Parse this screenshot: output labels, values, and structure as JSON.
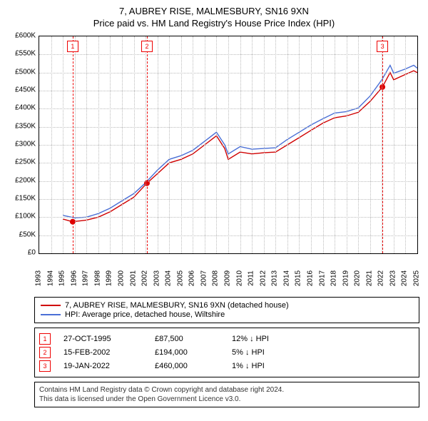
{
  "title_line1": "7, AUBREY RISE, MALMESBURY, SN16 9XN",
  "title_line2": "Price paid vs. HM Land Registry's House Price Index (HPI)",
  "chart": {
    "type": "line",
    "background_color": "#ffffff",
    "grid_color": "#bbbbbb",
    "border_color": "#000000",
    "x_years": [
      1993,
      1994,
      1995,
      1996,
      1997,
      1998,
      1999,
      2000,
      2001,
      2002,
      2003,
      2004,
      2005,
      2006,
      2007,
      2008,
      2009,
      2010,
      2011,
      2012,
      2013,
      2014,
      2015,
      2016,
      2017,
      2018,
      2019,
      2020,
      2021,
      2022,
      2023,
      2024,
      2025
    ],
    "y_min": 0,
    "y_max": 600000,
    "y_tick_step": 50000,
    "y_tick_labels": [
      "£0",
      "£50K",
      "£100K",
      "£150K",
      "£200K",
      "£250K",
      "£300K",
      "£350K",
      "£400K",
      "£450K",
      "£500K",
      "£550K",
      "£600K"
    ],
    "series": [
      {
        "name": "price_paid",
        "legend": "7, AUBREY RISE, MALMESBURY, SN16 9XN (detached house)",
        "color": "#d00000",
        "line_width": 1.4,
        "points": [
          [
            1995,
            95000
          ],
          [
            1995.8,
            87500
          ],
          [
            1996.5,
            90000
          ],
          [
            1997,
            92000
          ],
          [
            1998,
            100000
          ],
          [
            1999,
            115000
          ],
          [
            2000,
            135000
          ],
          [
            2001,
            155000
          ],
          [
            2002.12,
            194000
          ],
          [
            2003,
            220000
          ],
          [
            2004,
            250000
          ],
          [
            2005,
            260000
          ],
          [
            2006,
            275000
          ],
          [
            2007,
            300000
          ],
          [
            2008,
            325000
          ],
          [
            2008.7,
            290000
          ],
          [
            2009,
            260000
          ],
          [
            2010,
            280000
          ],
          [
            2011,
            275000
          ],
          [
            2012,
            278000
          ],
          [
            2013,
            280000
          ],
          [
            2014,
            300000
          ],
          [
            2015,
            320000
          ],
          [
            2016,
            340000
          ],
          [
            2017,
            360000
          ],
          [
            2018,
            375000
          ],
          [
            2019,
            380000
          ],
          [
            2020,
            390000
          ],
          [
            2021,
            420000
          ],
          [
            2022.05,
            460000
          ],
          [
            2022.7,
            500000
          ],
          [
            2023,
            480000
          ],
          [
            2024,
            495000
          ],
          [
            2024.7,
            505000
          ],
          [
            2025,
            500000
          ]
        ]
      },
      {
        "name": "hpi",
        "legend": "HPI: Average price, detached house, Wiltshire",
        "color": "#4a6fd6",
        "line_width": 1.4,
        "points": [
          [
            1995,
            105000
          ],
          [
            1996,
            98000
          ],
          [
            1997,
            100000
          ],
          [
            1998,
            110000
          ],
          [
            1999,
            125000
          ],
          [
            2000,
            145000
          ],
          [
            2001,
            165000
          ],
          [
            2002,
            195000
          ],
          [
            2003,
            230000
          ],
          [
            2004,
            260000
          ],
          [
            2005,
            270000
          ],
          [
            2006,
            285000
          ],
          [
            2007,
            310000
          ],
          [
            2008,
            335000
          ],
          [
            2008.7,
            300000
          ],
          [
            2009,
            275000
          ],
          [
            2010,
            295000
          ],
          [
            2011,
            288000
          ],
          [
            2012,
            290000
          ],
          [
            2013,
            292000
          ],
          [
            2014,
            315000
          ],
          [
            2015,
            335000
          ],
          [
            2016,
            355000
          ],
          [
            2017,
            372000
          ],
          [
            2018,
            388000
          ],
          [
            2019,
            392000
          ],
          [
            2020,
            402000
          ],
          [
            2021,
            435000
          ],
          [
            2022,
            480000
          ],
          [
            2022.7,
            520000
          ],
          [
            2023,
            498000
          ],
          [
            2024,
            510000
          ],
          [
            2024.7,
            520000
          ],
          [
            2025,
            512000
          ]
        ]
      }
    ],
    "sale_markers": [
      {
        "n": "1",
        "year": 1995.83,
        "y": 87500
      },
      {
        "n": "2",
        "year": 2002.12,
        "y": 194000
      },
      {
        "n": "3",
        "year": 2022.05,
        "y": 460000
      }
    ]
  },
  "sales": [
    {
      "n": "1",
      "date": "27-OCT-1995",
      "price": "£87,500",
      "hpi": "12% ↓ HPI"
    },
    {
      "n": "2",
      "date": "15-FEB-2002",
      "price": "£194,000",
      "hpi": "5% ↓ HPI"
    },
    {
      "n": "3",
      "date": "19-JAN-2022",
      "price": "£460,000",
      "hpi": "1% ↓ HPI"
    }
  ],
  "footer_line1": "Contains HM Land Registry data © Crown copyright and database right 2024.",
  "footer_line2": "This data is licensed under the Open Government Licence v3.0."
}
